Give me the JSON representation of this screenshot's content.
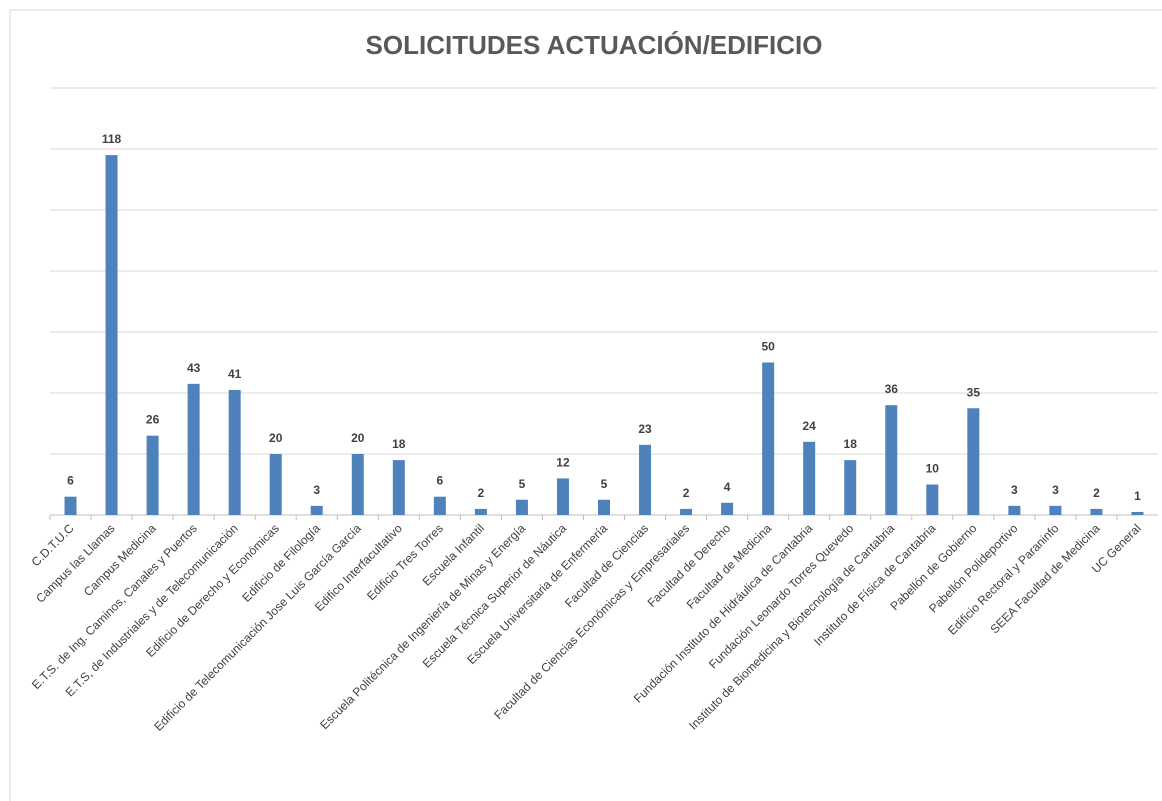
{
  "chart_data": {
    "type": "bar",
    "title": "SOLICITUDES ACTUACIÓN/EDIFICIO",
    "categories": [
      "C.D.T.U.C",
      "Campus las Llamas",
      "Campus Medicina",
      "E.T.S. de Ing. Caminos, Canales y Puertos",
      "E.T.S, de Industriales y de Telecomunicación",
      "Edificio de Derecho y Económicas",
      "Edificio de Filología",
      "Edificio de Telecomunicación Jose Luis García García",
      "Edifico Interfacultativo",
      "Edificio Tres Torres",
      "Escuela Infantil",
      "Escuela Politécnica de Ingeniería de Minas y Energía",
      "Escuela Técnica Superior de Náutica",
      "Escuela Universitaria de Enfermería",
      "Facultad de Ciencias",
      "Facultad de Ciencias Económicas y Empresariales",
      "Facultad de Derecho",
      "Facultad de Medicina",
      "Fundación Instituto de Hidráulica de Cantabria",
      "Fundación Leonardo Torres Quevedo",
      "Instituto de Biomedicina y Biotecnología de Cantabria",
      "Instituto de Física de Cantabria",
      "Pabellón de Gobierno",
      "Pabellón Polideportivo",
      "Edificio Rectoral y Paraninfo",
      "SEEA Facultad de Medicina",
      "UC General"
    ],
    "values": [
      6,
      118,
      26,
      43,
      41,
      20,
      3,
      20,
      18,
      6,
      2,
      5,
      12,
      5,
      23,
      2,
      4,
      50,
      24,
      18,
      36,
      10,
      35,
      3,
      3,
      2,
      1
    ],
    "color": "#4f81bd",
    "ylim": [
      0,
      140
    ],
    "yticks": [
      0,
      20,
      40,
      60,
      80,
      100,
      120,
      140
    ],
    "grid": true
  }
}
